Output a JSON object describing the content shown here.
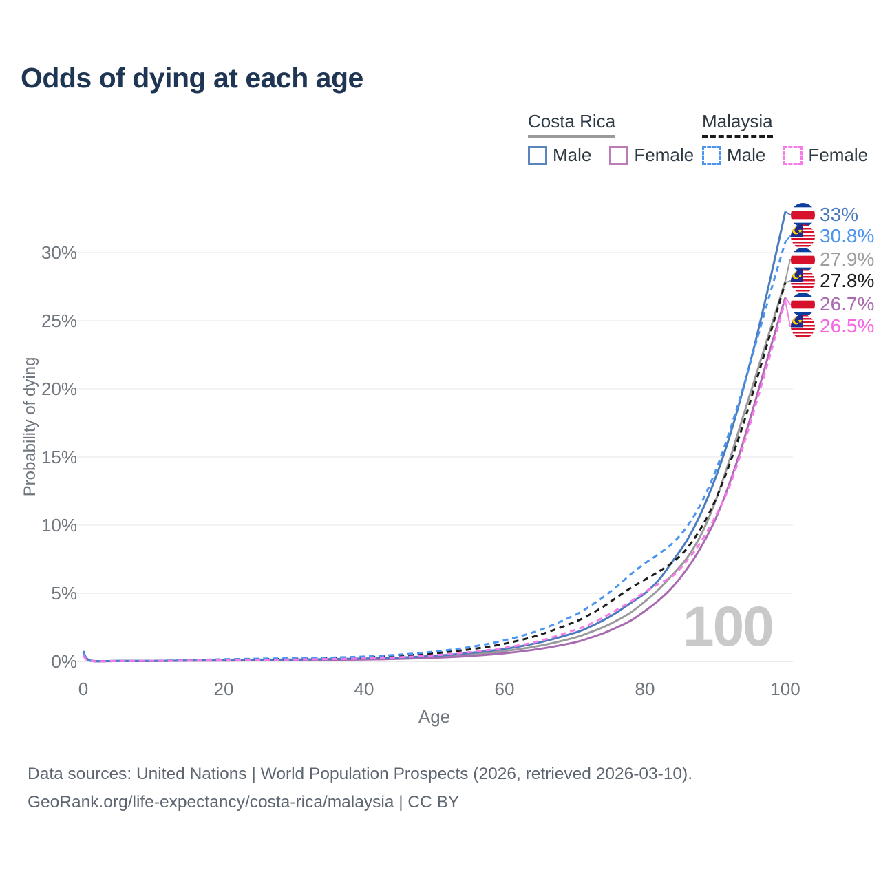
{
  "title": "Odds of dying at each age",
  "legend": {
    "groups": [
      {
        "name": "Costa Rica",
        "line_style": "solid",
        "underline_color": "#9a9a9a",
        "items": [
          {
            "label": "Male",
            "color": "#5b84bb"
          },
          {
            "label": "Female",
            "color": "#bd7cb5"
          }
        ]
      },
      {
        "name": "Malaysia",
        "line_style": "dashed",
        "underline_color": "#1a1a1a",
        "items": [
          {
            "label": "Male",
            "color": "#4b94f0"
          },
          {
            "label": "Female",
            "color": "#f87ae8"
          }
        ]
      }
    ]
  },
  "chart_data": {
    "type": "line",
    "title": "Odds of dying at each age",
    "xlabel": "Age",
    "ylabel": "Probability of dying",
    "xlim": [
      0,
      100
    ],
    "ylim": [
      0,
      33.5
    ],
    "x_ticks": [
      0,
      20,
      40,
      60,
      80,
      100
    ],
    "y_tick_values": [
      0,
      5,
      10,
      15,
      20,
      25,
      30
    ],
    "y_tick_labels": [
      "0%",
      "5%",
      "10%",
      "15%",
      "20%",
      "25%",
      "30%"
    ],
    "grid": "horizontal",
    "legend_position": "top-right",
    "watermark": "100",
    "series": [
      {
        "name": "Costa Rica Both sexes",
        "country": "Costa Rica",
        "sex": "both",
        "color": "#9a9a9a",
        "dashed": false,
        "end_value_pct": 27.9,
        "points": [
          [
            0,
            0.66
          ],
          [
            1,
            0.06
          ],
          [
            5,
            0.04
          ],
          [
            10,
            0.04
          ],
          [
            15,
            0.06
          ],
          [
            20,
            0.09
          ],
          [
            25,
            0.11
          ],
          [
            30,
            0.12
          ],
          [
            35,
            0.14
          ],
          [
            40,
            0.18
          ],
          [
            45,
            0.24
          ],
          [
            50,
            0.34
          ],
          [
            55,
            0.51
          ],
          [
            60,
            0.76
          ],
          [
            65,
            1.15
          ],
          [
            70,
            1.75
          ],
          [
            72,
            2.1
          ],
          [
            74,
            2.5
          ],
          [
            76,
            3.0
          ],
          [
            78,
            3.6
          ],
          [
            80,
            4.4
          ],
          [
            82,
            5.3
          ],
          [
            84,
            6.4
          ],
          [
            86,
            7.6
          ],
          [
            88,
            9.3
          ],
          [
            90,
            11.7
          ],
          [
            92,
            14.7
          ],
          [
            94,
            18.0
          ],
          [
            96,
            21.3
          ],
          [
            98,
            24.6
          ],
          [
            100,
            27.9
          ]
        ]
      },
      {
        "name": "Costa Rica Female",
        "country": "Costa Rica",
        "sex": "female",
        "color": "#a96bb0",
        "dashed": false,
        "end_value_pct": 26.7,
        "points": [
          [
            0,
            0.6
          ],
          [
            1,
            0.05
          ],
          [
            5,
            0.03
          ],
          [
            10,
            0.03
          ],
          [
            15,
            0.05
          ],
          [
            20,
            0.06
          ],
          [
            25,
            0.08
          ],
          [
            30,
            0.09
          ],
          [
            35,
            0.11
          ],
          [
            40,
            0.14
          ],
          [
            45,
            0.19
          ],
          [
            50,
            0.27
          ],
          [
            55,
            0.4
          ],
          [
            60,
            0.6
          ],
          [
            65,
            0.92
          ],
          [
            70,
            1.4
          ],
          [
            72,
            1.7
          ],
          [
            74,
            2.05
          ],
          [
            76,
            2.5
          ],
          [
            78,
            3.0
          ],
          [
            80,
            3.7
          ],
          [
            82,
            4.5
          ],
          [
            84,
            5.5
          ],
          [
            86,
            6.8
          ],
          [
            88,
            8.4
          ],
          [
            90,
            10.4
          ],
          [
            92,
            13.0
          ],
          [
            94,
            16.1
          ],
          [
            96,
            19.6
          ],
          [
            98,
            23.2
          ],
          [
            100,
            26.7
          ]
        ]
      },
      {
        "name": "Costa Rica Male",
        "country": "Costa Rica",
        "sex": "male",
        "color": "#4a7bbd",
        "dashed": false,
        "end_value_pct": 33.0,
        "points": [
          [
            0,
            0.75
          ],
          [
            1,
            0.07
          ],
          [
            5,
            0.04
          ],
          [
            10,
            0.04
          ],
          [
            15,
            0.07
          ],
          [
            20,
            0.11
          ],
          [
            25,
            0.13
          ],
          [
            30,
            0.14
          ],
          [
            35,
            0.17
          ],
          [
            40,
            0.21
          ],
          [
            45,
            0.28
          ],
          [
            50,
            0.41
          ],
          [
            55,
            0.62
          ],
          [
            60,
            0.92
          ],
          [
            65,
            1.4
          ],
          [
            70,
            2.1
          ],
          [
            72,
            2.5
          ],
          [
            74,
            3.0
          ],
          [
            76,
            3.6
          ],
          [
            78,
            4.3
          ],
          [
            80,
            5.0
          ],
          [
            82,
            6.0
          ],
          [
            84,
            7.4
          ],
          [
            86,
            8.9
          ],
          [
            88,
            10.9
          ],
          [
            90,
            13.4
          ],
          [
            92,
            16.4
          ],
          [
            94,
            20.0
          ],
          [
            96,
            24.0
          ],
          [
            98,
            28.4
          ],
          [
            100,
            33.0
          ]
        ]
      },
      {
        "name": "Malaysia Both sexes",
        "country": "Malaysia",
        "sex": "both",
        "color": "#1c1c1c",
        "dashed": true,
        "end_value_pct": 27.8,
        "points": [
          [
            0,
            0.48
          ],
          [
            1,
            0.05
          ],
          [
            5,
            0.03
          ],
          [
            10,
            0.04
          ],
          [
            15,
            0.08
          ],
          [
            20,
            0.12
          ],
          [
            25,
            0.16
          ],
          [
            30,
            0.19
          ],
          [
            35,
            0.23
          ],
          [
            40,
            0.3
          ],
          [
            45,
            0.42
          ],
          [
            50,
            0.6
          ],
          [
            55,
            0.88
          ],
          [
            60,
            1.3
          ],
          [
            65,
            1.95
          ],
          [
            70,
            2.9
          ],
          [
            72,
            3.4
          ],
          [
            74,
            4.0
          ],
          [
            76,
            4.7
          ],
          [
            78,
            5.4
          ],
          [
            80,
            6.0
          ],
          [
            82,
            6.6
          ],
          [
            84,
            7.3
          ],
          [
            86,
            8.3
          ],
          [
            88,
            9.8
          ],
          [
            90,
            11.8
          ],
          [
            92,
            14.4
          ],
          [
            94,
            17.4
          ],
          [
            96,
            20.8
          ],
          [
            98,
            24.3
          ],
          [
            100,
            27.8
          ]
        ]
      },
      {
        "name": "Malaysia Male",
        "country": "Malaysia",
        "sex": "male",
        "color": "#4b94f0",
        "dashed": true,
        "end_value_pct": 30.8,
        "points": [
          [
            0,
            0.55
          ],
          [
            1,
            0.05
          ],
          [
            5,
            0.04
          ],
          [
            10,
            0.05
          ],
          [
            15,
            0.1
          ],
          [
            20,
            0.16
          ],
          [
            25,
            0.2
          ],
          [
            30,
            0.23
          ],
          [
            35,
            0.28
          ],
          [
            40,
            0.36
          ],
          [
            45,
            0.5
          ],
          [
            50,
            0.72
          ],
          [
            55,
            1.05
          ],
          [
            60,
            1.55
          ],
          [
            65,
            2.3
          ],
          [
            70,
            3.4
          ],
          [
            72,
            4.0
          ],
          [
            74,
            4.7
          ],
          [
            76,
            5.5
          ],
          [
            78,
            6.4
          ],
          [
            80,
            7.2
          ],
          [
            82,
            7.9
          ],
          [
            84,
            8.7
          ],
          [
            86,
            9.9
          ],
          [
            88,
            11.6
          ],
          [
            90,
            13.9
          ],
          [
            92,
            16.8
          ],
          [
            94,
            20.1
          ],
          [
            96,
            23.7
          ],
          [
            98,
            27.3
          ],
          [
            100,
            30.8
          ]
        ]
      },
      {
        "name": "Malaysia Female",
        "country": "Malaysia",
        "sex": "female",
        "color": "#f87ae8",
        "dashed": true,
        "end_value_pct": 26.5,
        "points": [
          [
            0,
            0.42
          ],
          [
            1,
            0.04
          ],
          [
            5,
            0.03
          ],
          [
            10,
            0.04
          ],
          [
            15,
            0.06
          ],
          [
            20,
            0.08
          ],
          [
            25,
            0.11
          ],
          [
            30,
            0.14
          ],
          [
            35,
            0.17
          ],
          [
            40,
            0.22
          ],
          [
            45,
            0.31
          ],
          [
            50,
            0.45
          ],
          [
            55,
            0.68
          ],
          [
            60,
            1.0
          ],
          [
            65,
            1.5
          ],
          [
            70,
            2.3
          ],
          [
            72,
            2.7
          ],
          [
            74,
            3.2
          ],
          [
            76,
            3.8
          ],
          [
            78,
            4.4
          ],
          [
            80,
            5.1
          ],
          [
            82,
            5.7
          ],
          [
            84,
            6.3
          ],
          [
            86,
            7.4
          ],
          [
            88,
            8.8
          ],
          [
            90,
            10.6
          ],
          [
            92,
            12.8
          ],
          [
            94,
            15.8
          ],
          [
            96,
            19.2
          ],
          [
            98,
            22.8
          ],
          [
            100,
            26.5
          ]
        ]
      }
    ]
  },
  "end_labels": [
    {
      "label": "33%",
      "series": "Costa Rica Male",
      "flag": "costa-rica",
      "color": "#4a7bbd",
      "connector": "#4a7bbd"
    },
    {
      "label": "30.8%",
      "series": "Malaysia Male",
      "flag": "malaysia",
      "color": "#4b94f0",
      "connector": "#4b94f0"
    },
    {
      "label": "27.9%",
      "series": "Costa Rica Both sexes",
      "flag": "costa-rica",
      "color": "#9e9e9e",
      "connector": "#9a9a9a"
    },
    {
      "label": "27.8%",
      "series": "Malaysia Both sexes",
      "flag": "malaysia",
      "color": "#1f1f1f",
      "connector": "#9a9a9a"
    },
    {
      "label": "26.7%",
      "series": "Costa Rica Female",
      "flag": "costa-rica",
      "color": "#a96bb0",
      "connector": "#f57fe6"
    },
    {
      "label": "26.5%",
      "series": "Malaysia Female",
      "flag": "malaysia",
      "color": "#f666e2",
      "connector": "#f57fe6"
    }
  ],
  "footer": {
    "line1": "Data sources: United Nations | World Population Prospects (2026, retrieved 2026-03-10).",
    "line2": "GeoRank.org/life-expectancy/costa-rica/malaysia | CC BY"
  }
}
